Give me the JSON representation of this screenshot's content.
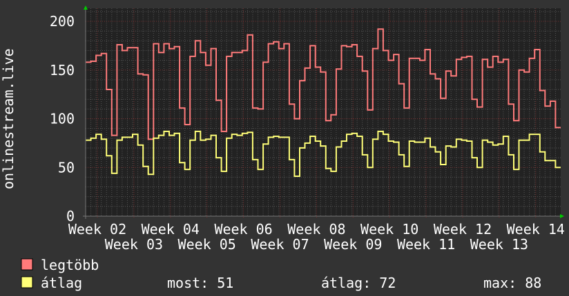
{
  "chart_data": {
    "type": "line",
    "ylabel": "onlinestream.live",
    "ylim": [
      0,
      212
    ],
    "yticks": [
      "0",
      "50",
      "100",
      "150",
      "200"
    ],
    "xtick_labels": [
      "Week 02",
      "Week 03",
      "Week 04",
      "Week 05",
      "Week 06",
      "Week 07",
      "Week 08",
      "Week 09",
      "Week 10",
      "Week 11",
      "Week 12",
      "Week 13",
      "Week 14"
    ],
    "grid": true,
    "legend_placement": "bottom-left",
    "series": [
      {
        "name": "legtöbb",
        "color": "#ff7b7b",
        "values": [
          158,
          159,
          165,
          167,
          130,
          83,
          176,
          170,
          173,
          173,
          146,
          145,
          79,
          177,
          168,
          177,
          172,
          174,
          111,
          94,
          164,
          180,
          168,
          155,
          172,
          119,
          87,
          164,
          168,
          168,
          170,
          186,
          111,
          110,
          158,
          177,
          179,
          172,
          177,
          115,
          100,
          139,
          152,
          175,
          153,
          148,
          98,
          104,
          151,
          175,
          174,
          176,
          164,
          149,
          109,
          172,
          192,
          170,
          160,
          166,
          136,
          111,
          162,
          162,
          160,
          171,
          146,
          141,
          121,
          149,
          144,
          161,
          163,
          164,
          120,
          112,
          161,
          153,
          164,
          158,
          161,
          115,
          98,
          150,
          148,
          162,
          171,
          129,
          113,
          118,
          91
        ]
      },
      {
        "name": "átlag",
        "color": "#ffff78",
        "values": [
          78,
          80,
          84,
          79,
          62,
          44,
          78,
          81,
          81,
          84,
          73,
          51,
          43,
          80,
          83,
          87,
          83,
          85,
          55,
          48,
          78,
          87,
          78,
          79,
          83,
          60,
          46,
          80,
          84,
          83,
          85,
          86,
          58,
          48,
          74,
          81,
          82,
          81,
          81,
          58,
          41,
          70,
          75,
          82,
          77,
          72,
          49,
          46,
          71,
          77,
          84,
          85,
          82,
          63,
          50,
          79,
          87,
          84,
          77,
          76,
          63,
          51,
          77,
          76,
          76,
          80,
          71,
          66,
          53,
          72,
          71,
          79,
          78,
          77,
          60,
          50,
          78,
          76,
          73,
          74,
          82,
          63,
          48,
          78,
          78,
          84,
          84,
          66,
          57,
          57,
          50
        ]
      }
    ],
    "stats": {
      "most_label": "most: 51",
      "atlag_label": "átlag: 72",
      "max_label": "max: 88"
    }
  },
  "legend": {
    "max_name": "legtöbb",
    "avg_name": "átlag"
  }
}
